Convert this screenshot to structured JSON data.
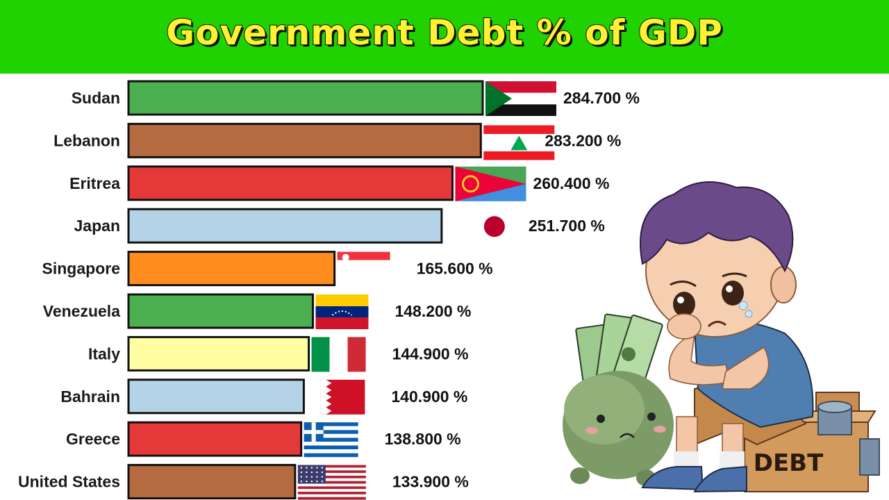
{
  "header": {
    "title": "Government Debt % of GDP"
  },
  "chart_data": {
    "type": "bar",
    "orientation": "horizontal",
    "title": "Government Debt % of GDP",
    "unit": "%",
    "categories": [
      "Sudan",
      "Lebanon",
      "Eritrea",
      "Japan",
      "Singapore",
      "Venezuela",
      "Italy",
      "Bahrain",
      "Greece",
      "United States"
    ],
    "values": [
      284.7,
      283.2,
      260.4,
      251.7,
      165.6,
      148.2,
      144.9,
      140.9,
      138.8,
      133.9
    ],
    "value_labels": [
      "284.700",
      "283.200",
      "260.400",
      "251.700",
      "165.600",
      "148.200",
      "144.900",
      "140.900",
      "138.800",
      "133.900"
    ],
    "bar_colors": [
      "#4caf50",
      "#b56a40",
      "#e53838",
      "#b4d3e6",
      "#ff8d1e",
      "#4caf50",
      "#fffea0",
      "#b4d3e6",
      "#e53838",
      "#b56a40"
    ],
    "flags": [
      "sudan-flag",
      "lebanon-flag",
      "eritrea-flag",
      "japan-flag",
      "singapore-flag",
      "venezuela-flag",
      "italy-flag",
      "bahrain-flag",
      "greece-flag",
      "united-states-flag"
    ]
  },
  "illustration": {
    "box_text": "DEBT"
  }
}
